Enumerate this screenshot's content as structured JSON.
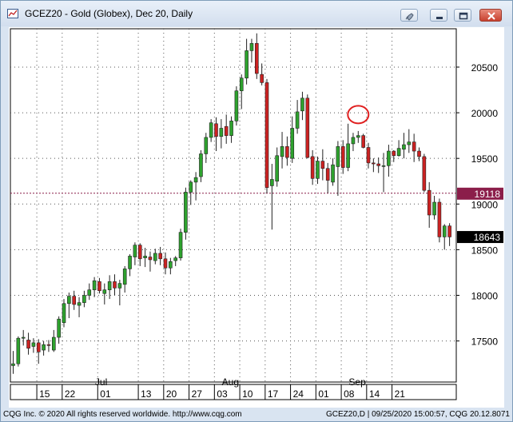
{
  "window": {
    "title": "GCEZ20 - Gold (Globex), Dec 20, Daily",
    "icons": [
      "chart-icon",
      "pin-icon",
      "minimize-icon",
      "restore-icon",
      "close-icon"
    ]
  },
  "chart_data": {
    "type": "candlestick",
    "symbol": "GCEZ20",
    "ylim": [
      17050,
      20920
    ],
    "y_ticks": [
      17500,
      18000,
      18500,
      19000,
      19500,
      20000,
      20500
    ],
    "x_tick_labels": [
      "15",
      "22",
      "01",
      "13",
      "20",
      "27",
      "03",
      "10",
      "17",
      "24",
      "01",
      "08",
      "14",
      "21"
    ],
    "month_labels": [
      "Jul",
      "Aug",
      "Sep"
    ],
    "reference_line": {
      "value": 19118,
      "label": "19118",
      "color": "#8b1e4a"
    },
    "last_price": {
      "value": 18643,
      "label": "18643"
    },
    "annotation": {
      "type": "circle",
      "color": "#e02020",
      "at_index": 68,
      "value": 19980
    },
    "colors": {
      "up": "#2ea22e",
      "down": "#cc2222",
      "grid": "#555555",
      "wick": "#222222"
    },
    "candles": [
      [
        17230,
        17390,
        17140,
        17250
      ],
      [
        17250,
        17550,
        17220,
        17530
      ],
      [
        17530,
        17620,
        17450,
        17540
      ],
      [
        17510,
        17590,
        17350,
        17420
      ],
      [
        17440,
        17530,
        17370,
        17480
      ],
      [
        17480,
        17520,
        17250,
        17380
      ],
      [
        17400,
        17500,
        17340,
        17460
      ],
      [
        17460,
        17510,
        17380,
        17450
      ],
      [
        17400,
        17620,
        17380,
        17540
      ],
      [
        17540,
        17770,
        17470,
        17740
      ],
      [
        17700,
        17960,
        17650,
        17910
      ],
      [
        17910,
        18030,
        17750,
        17990
      ],
      [
        17990,
        18050,
        17840,
        17900
      ],
      [
        17890,
        17980,
        17760,
        17920
      ],
      [
        17920,
        18050,
        17870,
        18000
      ],
      [
        18000,
        18130,
        17950,
        18060
      ],
      [
        18060,
        18200,
        17980,
        18160
      ],
      [
        18150,
        18190,
        18020,
        18050
      ],
      [
        18020,
        18130,
        17900,
        18060
      ],
      [
        18060,
        18220,
        17960,
        18150
      ],
      [
        18150,
        18230,
        18000,
        18080
      ],
      [
        18080,
        18170,
        17890,
        18130
      ],
      [
        18120,
        18320,
        18030,
        18290
      ],
      [
        18290,
        18450,
        18210,
        18430
      ],
      [
        18420,
        18580,
        18330,
        18550
      ],
      [
        18550,
        18570,
        18320,
        18400
      ],
      [
        18410,
        18520,
        18310,
        18430
      ],
      [
        18420,
        18480,
        18260,
        18390
      ],
      [
        18380,
        18510,
        18340,
        18460
      ],
      [
        18460,
        18530,
        18330,
        18400
      ],
      [
        18400,
        18470,
        18230,
        18300
      ],
      [
        18300,
        18410,
        18230,
        18370
      ],
      [
        18380,
        18430,
        18320,
        18410
      ],
      [
        18410,
        18730,
        18380,
        18690
      ],
      [
        18690,
        19180,
        18610,
        19130
      ],
      [
        19130,
        19260,
        18990,
        19240
      ],
      [
        19240,
        19350,
        19040,
        19290
      ],
      [
        19300,
        19590,
        19240,
        19550
      ],
      [
        19550,
        19780,
        19450,
        19730
      ],
      [
        19730,
        19930,
        19680,
        19890
      ],
      [
        19880,
        19950,
        19580,
        19740
      ],
      [
        19740,
        19930,
        19610,
        19830
      ],
      [
        19850,
        19980,
        19660,
        19750
      ],
      [
        19750,
        19960,
        19670,
        19910
      ],
      [
        19910,
        20290,
        19860,
        20240
      ],
      [
        20240,
        20420,
        20040,
        20380
      ],
      [
        20380,
        20810,
        20310,
        20680
      ],
      [
        20680,
        20810,
        20550,
        20760
      ],
      [
        20760,
        20870,
        20370,
        20430
      ],
      [
        20420,
        20540,
        20300,
        20330
      ],
      [
        20330,
        20370,
        19120,
        19180
      ],
      [
        19200,
        19440,
        18720,
        19270
      ],
      [
        19250,
        19620,
        19190,
        19530
      ],
      [
        19520,
        19790,
        19390,
        19630
      ],
      [
        19630,
        19740,
        19420,
        19510
      ],
      [
        19500,
        19960,
        19450,
        19830
      ],
      [
        19830,
        20140,
        19770,
        20010
      ],
      [
        20020,
        20230,
        19920,
        20160
      ],
      [
        20160,
        20200,
        19500,
        19510
      ],
      [
        19520,
        19590,
        19210,
        19280
      ],
      [
        19280,
        19520,
        19220,
        19470
      ],
      [
        19470,
        19600,
        19260,
        19390
      ],
      [
        19390,
        19450,
        19120,
        19260
      ],
      [
        19240,
        19500,
        19200,
        19430
      ],
      [
        19410,
        19690,
        19090,
        19630
      ],
      [
        19630,
        19700,
        19330,
        19400
      ],
      [
        19400,
        19880,
        19360,
        19660
      ],
      [
        19660,
        19780,
        19580,
        19730
      ],
      [
        19730,
        19800,
        19670,
        19750
      ],
      [
        19750,
        19770,
        19610,
        19620
      ],
      [
        19620,
        19670,
        19390,
        19450
      ],
      [
        19450,
        19500,
        19350,
        19440
      ],
      [
        19440,
        19510,
        19340,
        19420
      ],
      [
        19420,
        19560,
        19130,
        19420
      ],
      [
        19420,
        19650,
        19300,
        19580
      ],
      [
        19580,
        19590,
        19460,
        19530
      ],
      [
        19530,
        19700,
        19520,
        19610
      ],
      [
        19600,
        19780,
        19500,
        19650
      ],
      [
        19650,
        19820,
        19560,
        19680
      ],
      [
        19680,
        19770,
        19460,
        19580
      ],
      [
        19580,
        19620,
        19470,
        19520
      ],
      [
        19520,
        19550,
        19130,
        19150
      ],
      [
        19150,
        19240,
        18740,
        18880
      ],
      [
        18880,
        19090,
        18830,
        19020
      ],
      [
        19020,
        19060,
        18580,
        18640
      ],
      [
        18640,
        18780,
        18500,
        18760
      ],
      [
        18760,
        18790,
        18540,
        18640
      ]
    ]
  },
  "status": {
    "left": "CQG Inc. © 2020 All rights reserved worldwide.  http://www.cqg.com",
    "right": "GCEZ20,D | 09/25/2020 15:00:57, CQG 20.12.8071"
  }
}
